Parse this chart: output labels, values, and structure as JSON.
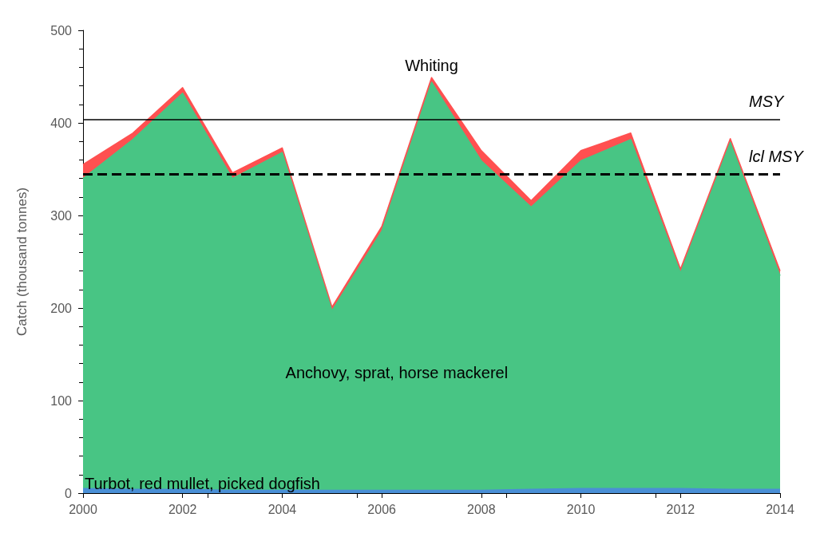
{
  "chart_data": {
    "type": "area",
    "ylabel": "Catch (thousand tonnes)",
    "stacked": true,
    "marker": "none",
    "x": [
      2000,
      2001,
      2002,
      2003,
      2004,
      2005,
      2006,
      2007,
      2008,
      2009,
      2010,
      2011,
      2012,
      2013,
      2014
    ],
    "xlim": [
      2000,
      2014
    ],
    "xticks": [
      2000,
      2002,
      2004,
      2006,
      2008,
      2010,
      2012,
      2014
    ],
    "ylim": [
      0,
      500
    ],
    "yticks": [
      0,
      100,
      200,
      300,
      400,
      500
    ],
    "series": [
      {
        "name": "Turbot, red mullet, picked dogfish",
        "color": "#4a8fd6",
        "values": [
          5,
          4,
          4,
          3,
          3,
          3,
          3,
          3,
          3,
          4,
          5,
          5,
          5,
          4,
          4
        ]
      },
      {
        "name": "Anchovy, sprat, horse mackerel",
        "color": "#48c584",
        "values": [
          335,
          378,
          428,
          337,
          365,
          194,
          280,
          441,
          356,
          305,
          354,
          377,
          233,
          375,
          231
        ]
      },
      {
        "name": "Whiting",
        "color": "#ff5050",
        "values": [
          15,
          7,
          6,
          6,
          5,
          4,
          5,
          5,
          11,
          7,
          11,
          7,
          4,
          4,
          5
        ]
      }
    ],
    "ref_lines": [
      {
        "axis": "y",
        "value": 404,
        "label": "MSY",
        "color": "#000000",
        "line_style": "solid"
      },
      {
        "axis": "y",
        "value": 345,
        "label": "lcl MSY",
        "color": "#000000",
        "line_style": "dashed"
      }
    ]
  }
}
